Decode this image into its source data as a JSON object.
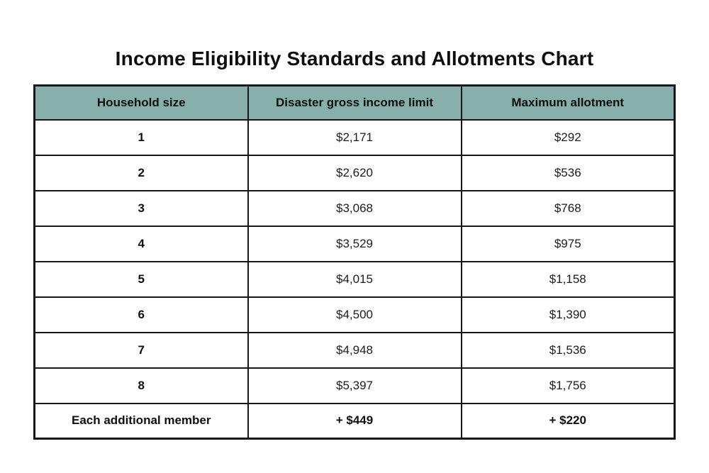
{
  "page": {
    "title": "Income Eligibility Standards and Allotments Chart"
  },
  "table": {
    "columns": [
      "Household size",
      "Disaster gross income limit",
      "Maximum allotment"
    ],
    "rows": [
      [
        "1",
        "$2,171",
        "$292"
      ],
      [
        "2",
        "$2,620",
        "$536"
      ],
      [
        "3",
        "$3,068",
        "$768"
      ],
      [
        "4",
        "$3,529",
        "$975"
      ],
      [
        "5",
        "$4,015",
        "$1,158"
      ],
      [
        "6",
        "$4,500",
        "$1,390"
      ],
      [
        "7",
        "$4,948",
        "$1,536"
      ],
      [
        "8",
        "$5,397",
        "$1,756"
      ],
      [
        "Each additional member",
        "+ $449",
        "+ $220"
      ]
    ],
    "footer_row_index": 8
  },
  "colors": {
    "header_bg": "#87afab",
    "border": "#171717",
    "title_text": "#0f0f0f",
    "cell_text": "#1c1c1c",
    "background": "#ffffff"
  },
  "chart_data": {
    "type": "table",
    "title": "Income Eligibility Standards and Allotments Chart",
    "columns": [
      "Household size",
      "Disaster gross income limit",
      "Maximum allotment"
    ],
    "rows": [
      {
        "household_size": "1",
        "disaster_gross_income_limit": 2171,
        "maximum_allotment": 292
      },
      {
        "household_size": "2",
        "disaster_gross_income_limit": 2620,
        "maximum_allotment": 536
      },
      {
        "household_size": "3",
        "disaster_gross_income_limit": 3068,
        "maximum_allotment": 768
      },
      {
        "household_size": "4",
        "disaster_gross_income_limit": 3529,
        "maximum_allotment": 975
      },
      {
        "household_size": "5",
        "disaster_gross_income_limit": 4015,
        "maximum_allotment": 1158
      },
      {
        "household_size": "6",
        "disaster_gross_income_limit": 4500,
        "maximum_allotment": 1390
      },
      {
        "household_size": "7",
        "disaster_gross_income_limit": 4948,
        "maximum_allotment": 1536
      },
      {
        "household_size": "8",
        "disaster_gross_income_limit": 5397,
        "maximum_allotment": 1756
      },
      {
        "household_size": "Each additional member",
        "disaster_gross_income_limit": "+ $449",
        "maximum_allotment": "+ $220"
      }
    ],
    "notes": "Per-additional-member increments: +$449 income limit, +$220 allotment"
  }
}
